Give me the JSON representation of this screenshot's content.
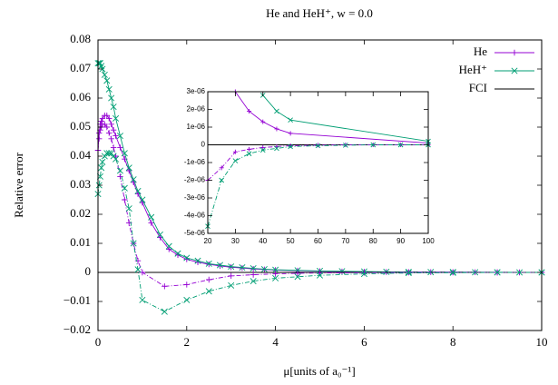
{
  "chart_data": [
    {
      "type": "line",
      "title": "He and HeH⁺, w = 0.0",
      "x_label": "μ[units of a₀⁻¹]",
      "y_label": "Relative error",
      "xlim": [
        0,
        10
      ],
      "xticks": [
        0,
        2,
        4,
        6,
        8,
        10
      ],
      "ylim": [
        -0.02,
        0.08
      ],
      "yticks": [
        {
          "value": -0.02,
          "label": "−0.02"
        },
        {
          "value": -0.01,
          "label": "−0.01"
        },
        0,
        0.01,
        0.02,
        0.03,
        0.04,
        0.05,
        0.06,
        0.07,
        0.08
      ],
      "legend": "top right",
      "series": [
        {
          "name": "He",
          "color": "#9400d3",
          "marker": "plus",
          "style": "solid",
          "x": [
            0,
            0.025,
            0.05,
            0.075,
            0.1,
            0.15,
            0.2,
            0.25,
            0.3,
            0.35,
            0.4,
            0.5,
            0.6,
            0.7,
            0.8,
            0.9,
            1.0,
            1.2,
            1.4,
            1.6,
            1.8,
            2.0,
            2.25,
            2.5,
            2.75,
            3,
            3.25,
            3.5,
            3.75,
            4,
            4.5,
            5,
            5.5,
            6,
            6.5,
            7,
            7.5,
            8,
            8.5,
            9,
            9.5,
            10
          ],
          "values": [
            0.042,
            0.048,
            0.051,
            0.052,
            0.053,
            0.054,
            0.054,
            0.053,
            0.051,
            0.049,
            0.047,
            0.043,
            0.039,
            0.035,
            0.031,
            0.027,
            0.024,
            0.017,
            0.012,
            0.008,
            0.006,
            0.0045,
            0.0035,
            0.0028,
            0.0022,
            0.0018,
            0.0015,
            0.0012,
            0.001,
            0.0008,
            0.0006,
            0.0004,
            0.0003,
            0.0002,
            0.00015,
            0.0001,
            0.0001,
            5e-05,
            5e-05,
            0,
            0,
            0
          ]
        },
        {
          "name": "HeH⁺",
          "color": "#009e73",
          "marker": "cross",
          "style": "solid",
          "x": [
            0,
            0.025,
            0.05,
            0.075,
            0.1,
            0.15,
            0.2,
            0.25,
            0.3,
            0.35,
            0.4,
            0.5,
            0.6,
            0.7,
            0.8,
            0.9,
            1.0,
            1.2,
            1.4,
            1.6,
            1.8,
            2.0,
            2.25,
            2.5,
            2.75,
            3,
            3.25,
            3.5,
            3.75,
            4,
            4.5,
            5,
            5.5,
            6,
            6.5,
            7,
            7.5,
            8,
            8.5,
            9,
            9.5,
            10
          ],
          "values": [
            0.072,
            0.072,
            0.072,
            0.071,
            0.07,
            0.068,
            0.066,
            0.063,
            0.06,
            0.057,
            0.053,
            0.047,
            0.041,
            0.036,
            0.032,
            0.028,
            0.025,
            0.019,
            0.013,
            0.009,
            0.0065,
            0.005,
            0.004,
            0.003,
            0.0025,
            0.002,
            0.0017,
            0.0014,
            0.0011,
            0.0009,
            0.0007,
            0.0005,
            0.0004,
            0.0003,
            0.0002,
            0.00015,
            0.0001,
            0.0001,
            5e-05,
            5e-05,
            0,
            0
          ]
        },
        {
          "name": "FCI",
          "color": "#000000",
          "marker": "none",
          "style": "solid",
          "x": [
            0,
            10
          ],
          "values": [
            0,
            0
          ]
        },
        {
          "color": "#9400d3",
          "marker": "plus",
          "style": "dash",
          "x": [
            0,
            0.025,
            0.05,
            0.075,
            0.1,
            0.15,
            0.2,
            0.25,
            0.3,
            0.35,
            0.4,
            0.5,
            0.6,
            0.7,
            0.8,
            0.9,
            1.0,
            1.5,
            2,
            2.5,
            3,
            3.5,
            4,
            4.5,
            5,
            6,
            7,
            8,
            9,
            10
          ],
          "values": [
            0.042,
            0.046,
            0.049,
            0.05,
            0.051,
            0.051,
            0.05,
            0.048,
            0.046,
            0.043,
            0.04,
            0.033,
            0.025,
            0.017,
            0.01,
            0.004,
            0.0,
            -0.0048,
            -0.0042,
            -0.0025,
            -0.0012,
            -0.0008,
            -0.0005,
            -0.0003,
            -0.0002,
            -0.0001,
            0,
            0,
            0,
            0
          ]
        },
        {
          "color": "#009e73",
          "marker": "cross",
          "style": "dash",
          "x": [
            0,
            0.025,
            0.05,
            0.075,
            0.1,
            0.15,
            0.2,
            0.25,
            0.3,
            0.35,
            0.4,
            0.5,
            0.6,
            0.7,
            0.8,
            0.9,
            1.0,
            1.5,
            2,
            2.5,
            3,
            3.5,
            4,
            4.5,
            5,
            6,
            7,
            8,
            9,
            10
          ],
          "values": [
            0.027,
            0.03,
            0.033,
            0.036,
            0.038,
            0.04,
            0.041,
            0.041,
            0.041,
            0.04,
            0.039,
            0.035,
            0.029,
            0.022,
            0.01,
            0.001,
            -0.0095,
            -0.0135,
            -0.0095,
            -0.0065,
            -0.0045,
            -0.003,
            -0.002,
            -0.0015,
            -0.001,
            -0.0005,
            -0.0002,
            -0.0001,
            0,
            0
          ]
        }
      ]
    },
    {
      "type": "line",
      "xlim": [
        20,
        100
      ],
      "xticks": [
        20,
        30,
        40,
        50,
        60,
        70,
        80,
        90,
        100
      ],
      "ylim": [
        -5e-06,
        3e-06
      ],
      "yticks": [
        {
          "value": -5e-06,
          "label": "-5e-06"
        },
        {
          "value": -4e-06,
          "label": "-4e-06"
        },
        {
          "value": -3e-06,
          "label": "-3e-06"
        },
        {
          "value": -2e-06,
          "label": "-2e-06"
        },
        {
          "value": -1e-06,
          "label": "-1e-06"
        },
        0,
        {
          "value": 1e-06,
          "label": "1e-06"
        },
        {
          "value": 2e-06,
          "label": "2e-06"
        },
        {
          "value": 3e-06,
          "label": "3e-06"
        }
      ],
      "series": [
        {
          "color": "#9400d3",
          "marker": "plus",
          "style": "solid",
          "x": [
            30,
            35,
            40,
            45,
            50,
            100
          ],
          "values": [
            3e-06,
            1.9e-06,
            1.3e-06,
            9e-07,
            6.5e-07,
            1e-07
          ]
        },
        {
          "color": "#009e73",
          "marker": "cross",
          "style": "solid",
          "x": [
            40,
            45,
            50,
            100
          ],
          "values": [
            2.8e-06,
            1.9e-06,
            1.4e-06,
            2e-07
          ]
        },
        {
          "color": "#000000",
          "marker": "none",
          "style": "solid",
          "x": [
            20,
            100
          ],
          "values": [
            0,
            0
          ]
        },
        {
          "color": "#9400d3",
          "marker": "plus",
          "style": "dash",
          "x": [
            20,
            25,
            30,
            35,
            40,
            45,
            50,
            60,
            70,
            80,
            90,
            100
          ],
          "values": [
            -2e-06,
            -1.3e-06,
            -4e-07,
            -2.5e-07,
            -1.5e-07,
            -1e-07,
            -5e-08,
            -2e-08,
            0,
            0,
            0,
            0
          ]
        },
        {
          "color": "#009e73",
          "marker": "cross",
          "style": "dash",
          "x": [
            20,
            25,
            30,
            35,
            40,
            45,
            50,
            60,
            70,
            80,
            90,
            100
          ],
          "values": [
            -4.6e-06,
            -2e-06,
            -9e-07,
            -5e-07,
            -3e-07,
            -2e-07,
            -1e-07,
            -5e-08,
            -2e-08,
            0,
            0,
            0
          ]
        }
      ]
    }
  ]
}
